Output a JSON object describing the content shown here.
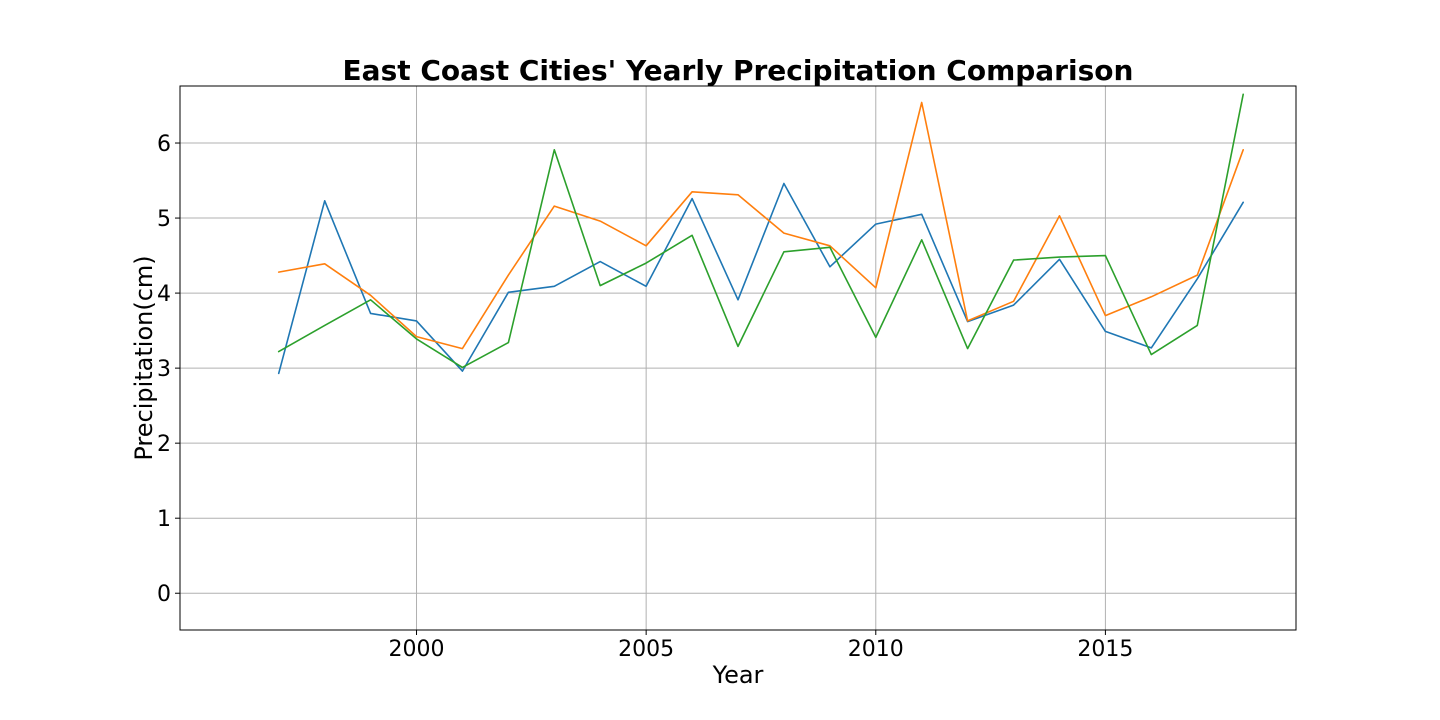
{
  "chart_data": {
    "type": "line",
    "title": "East Coast Cities' Yearly Precipitation Comparison",
    "xlabel": "Year",
    "ylabel": "Precipitation(cm)",
    "xlim": [
      1994.85,
      2019.15
    ],
    "ylim": [
      -0.49,
      6.76
    ],
    "xticks": [
      2000,
      2005,
      2010,
      2015
    ],
    "yticks": [
      0,
      1,
      2,
      3,
      4,
      5,
      6
    ],
    "grid": true,
    "x": [
      1997,
      1998,
      1999,
      2000,
      2001,
      2002,
      2003,
      2004,
      2005,
      2006,
      2007,
      2008,
      2009,
      2010,
      2011,
      2012,
      2013,
      2014,
      2015,
      2016,
      2017,
      2018
    ],
    "series": [
      {
        "color": "#1f77b4",
        "values": [
          2.93,
          5.23,
          3.73,
          3.63,
          2.96,
          4.01,
          4.09,
          4.42,
          4.09,
          5.26,
          3.91,
          5.46,
          4.35,
          4.92,
          5.05,
          3.62,
          3.84,
          4.45,
          3.49,
          3.27,
          4.19,
          5.21
        ]
      },
      {
        "color": "#ff7f0e",
        "values": [
          4.28,
          4.39,
          3.97,
          3.42,
          3.26,
          4.24,
          5.16,
          4.96,
          4.63,
          5.35,
          5.31,
          4.8,
          4.63,
          4.07,
          6.54,
          3.63,
          3.89,
          5.03,
          3.7,
          3.95,
          4.24,
          5.91
        ]
      },
      {
        "color": "#2ca02c",
        "values": [
          3.22,
          3.57,
          3.91,
          3.39,
          3.01,
          3.34,
          5.91,
          4.1,
          4.4,
          4.77,
          3.29,
          4.55,
          4.61,
          3.41,
          4.71,
          3.26,
          4.44,
          4.48,
          4.5,
          3.18,
          3.57,
          6.65
        ]
      }
    ]
  }
}
